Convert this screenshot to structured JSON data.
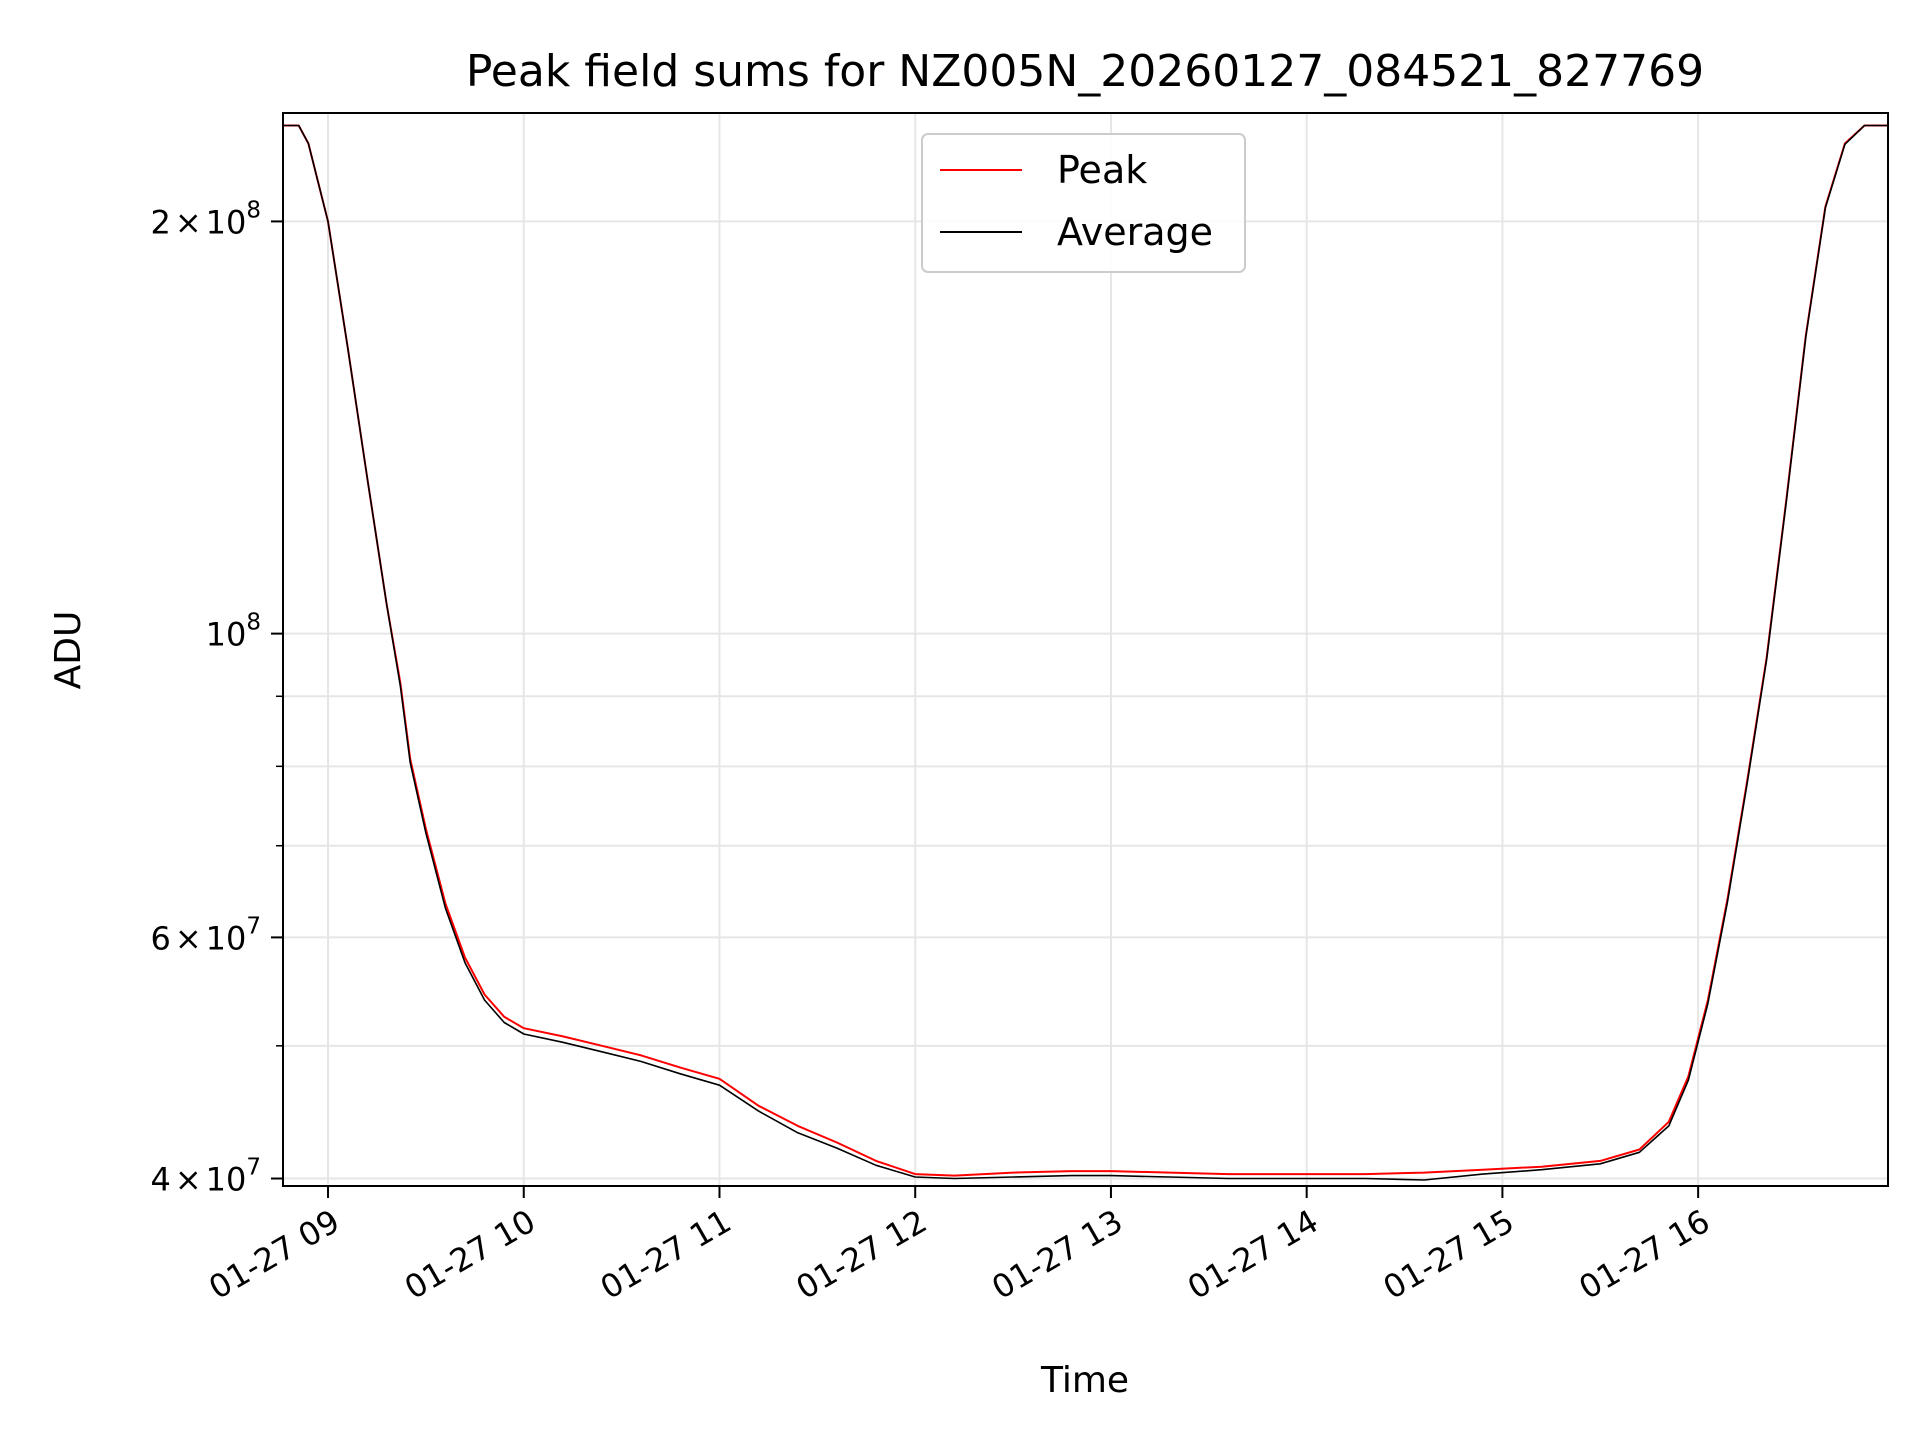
{
  "chart_data": {
    "type": "line",
    "title": "Peak field sums for NZ005N_20260127_084521_827769",
    "xlabel": "Time",
    "ylabel": "ADU",
    "yscale": "log",
    "ylim": [
      39500000,
      240000000
    ],
    "xlim_hours": [
      8.77,
      16.97
    ],
    "grid": true,
    "legend_position": "upper center",
    "x_ticks": [
      {
        "hour": 9,
        "label": "01-27 09"
      },
      {
        "hour": 10,
        "label": "01-27 10"
      },
      {
        "hour": 11,
        "label": "01-27 11"
      },
      {
        "hour": 12,
        "label": "01-27 12"
      },
      {
        "hour": 13,
        "label": "01-27 13"
      },
      {
        "hour": 14,
        "label": "01-27 14"
      },
      {
        "hour": 15,
        "label": "01-27 15"
      },
      {
        "hour": 16,
        "label": "01-27 16"
      }
    ],
    "y_major_ticks": [
      {
        "value": 40000000,
        "base": "4",
        "exp": "7"
      },
      {
        "value": 60000000,
        "base": "6",
        "exp": "7"
      },
      {
        "value": 100000000,
        "base": "10",
        "exp": "8"
      },
      {
        "value": 200000000,
        "base": "2",
        "exp": "8"
      }
    ],
    "y_minor_grid": [
      50000000,
      70000000,
      80000000,
      90000000
    ],
    "times_symbol": "×",
    "series": [
      {
        "name": "Peak",
        "color": "#ff0000",
        "hours": [
          8.77,
          8.85,
          8.9,
          9.0,
          9.1,
          9.2,
          9.3,
          9.37,
          9.42,
          9.5,
          9.6,
          9.7,
          9.8,
          9.9,
          10.0,
          10.2,
          10.4,
          10.6,
          10.8,
          11.0,
          11.2,
          11.4,
          11.6,
          11.8,
          12.0,
          12.2,
          12.5,
          12.8,
          13.0,
          13.3,
          13.6,
          14.0,
          14.3,
          14.6,
          14.9,
          15.2,
          15.5,
          15.7,
          15.85,
          15.95,
          16.05,
          16.15,
          16.25,
          16.35,
          16.45,
          16.55,
          16.65,
          16.75,
          16.85,
          16.97
        ],
        "values": [
          235000000,
          235000000,
          228000000,
          200000000,
          162000000,
          130000000,
          105000000,
          92000000,
          81000000,
          72000000,
          63500000,
          58000000,
          54500000,
          52500000,
          51500000,
          50800000,
          50000000,
          49200000,
          48200000,
          47300000,
          45200000,
          43700000,
          42500000,
          41200000,
          40300000,
          40200000,
          40400000,
          40500000,
          40500000,
          40400000,
          40300000,
          40300000,
          40300000,
          40400000,
          40600000,
          40800000,
          41200000,
          42000000,
          44000000,
          47500000,
          54000000,
          64000000,
          78000000,
          96000000,
          125000000,
          165000000,
          205000000,
          228000000,
          235000000,
          235000000
        ]
      },
      {
        "name": "Average",
        "color": "#000000",
        "hours": [
          8.77,
          8.85,
          8.9,
          9.0,
          9.1,
          9.2,
          9.3,
          9.37,
          9.42,
          9.5,
          9.6,
          9.7,
          9.8,
          9.9,
          10.0,
          10.2,
          10.4,
          10.6,
          10.8,
          11.0,
          11.2,
          11.4,
          11.6,
          11.8,
          12.0,
          12.2,
          12.5,
          12.8,
          13.0,
          13.3,
          13.6,
          14.0,
          14.3,
          14.6,
          14.9,
          15.2,
          15.5,
          15.7,
          15.85,
          15.95,
          16.05,
          16.15,
          16.25,
          16.35,
          16.45,
          16.55,
          16.65,
          16.75,
          16.85,
          16.97
        ],
        "values": [
          235000000,
          235000000,
          228000000,
          200000000,
          162000000,
          130000000,
          105000000,
          91500000,
          80500000,
          71500000,
          63000000,
          57500000,
          54000000,
          52000000,
          51000000,
          50300000,
          49500000,
          48700000,
          47700000,
          46800000,
          44800000,
          43200000,
          42100000,
          40900000,
          40100000,
          40000000,
          40100000,
          40200000,
          40200000,
          40100000,
          40000000,
          40000000,
          40000000,
          39900000,
          40300000,
          40600000,
          41000000,
          41800000,
          43700000,
          47200000,
          53700000,
          63700000,
          77700000,
          95700000,
          124700000,
          164700000,
          204700000,
          227700000,
          235000000,
          235000000
        ]
      }
    ]
  }
}
